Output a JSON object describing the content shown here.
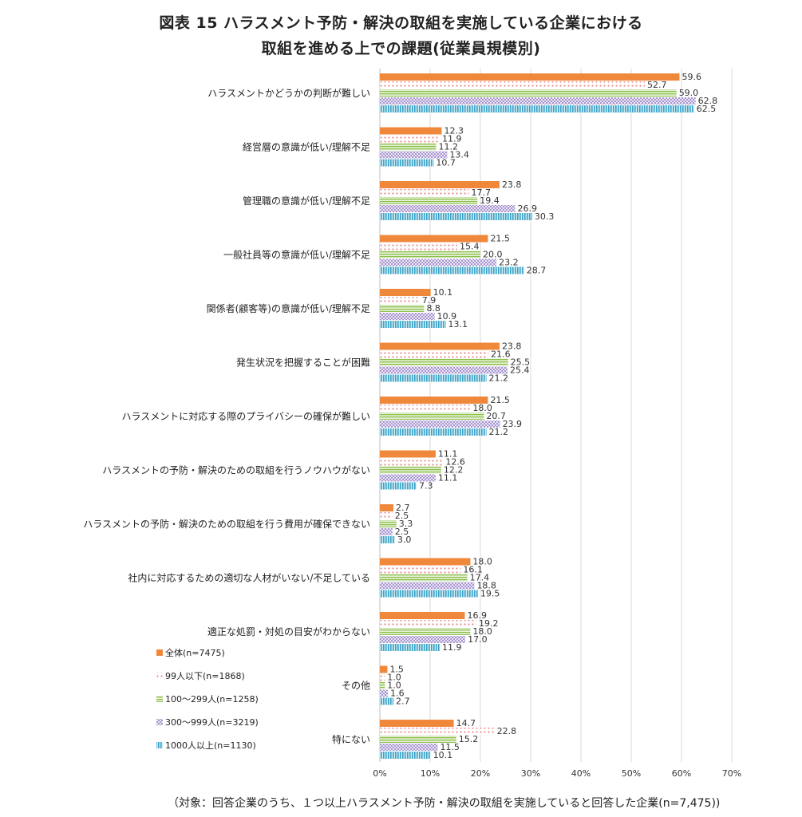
{
  "title_line1": "図表 15 ハラスメント予防・解決の取組を実施している企業における",
  "title_line2": "取組を進める上での課題(従業員規模別)",
  "footnote": "（対象：回答企業のうち、１つ以上ハラスメント予防・解決の取組を実施していると回答した企業(n=7,475))",
  "chart_data": {
    "type": "bar",
    "orientation": "horizontal",
    "xlim": [
      0,
      70
    ],
    "x_ticks": [
      "0%",
      "10%",
      "20%",
      "30%",
      "40%",
      "50%",
      "60%",
      "70%"
    ],
    "grid": true,
    "legend_position": "bottom-left",
    "categories": [
      "ハラスメントかどうかの判断が難しい",
      "経営層の意識が低い/理解不足",
      "管理職の意識が低い/理解不足",
      "一般社員等の意識が低い/理解不足",
      "関係者(顧客等)の意識が低い/理解不足",
      "発生状況を把握することが困難",
      "ハラスメントに対応する際のプライバシーの確保が難しい",
      "ハラスメントの予防・解決のための取組を行うノウハウがない",
      "ハラスメントの予防・解決のための取組を行う費用が確保できない",
      "社内に対応するための適切な人材がいない/不足している",
      "適正な処罰・対処の目安がわからない",
      "その他",
      "特にない"
    ],
    "series": [
      {
        "name": "全体(n=7475)",
        "color": "#f0883c",
        "pattern": "solid",
        "values": [
          59.6,
          12.3,
          23.8,
          21.5,
          10.1,
          23.8,
          21.5,
          11.1,
          2.7,
          18.0,
          16.9,
          1.5,
          14.7
        ]
      },
      {
        "name": "99人以下(n=1868)",
        "color": "#f0a0a0",
        "pattern": "dots",
        "values": [
          52.7,
          11.9,
          17.7,
          15.4,
          7.9,
          21.6,
          18.0,
          12.6,
          2.5,
          16.1,
          19.2,
          1.0,
          22.8
        ]
      },
      {
        "name": "100〜299人(n=1258)",
        "color": "#a8cc6c",
        "pattern": "hlines",
        "values": [
          59.0,
          11.2,
          19.4,
          20.0,
          8.8,
          25.5,
          20.7,
          12.2,
          3.3,
          17.4,
          18.0,
          1.0,
          15.2
        ]
      },
      {
        "name": "300〜999人(n=3219)",
        "color": "#b8a8d8",
        "pattern": "grid",
        "values": [
          62.8,
          13.4,
          26.9,
          23.2,
          10.9,
          25.4,
          23.9,
          11.1,
          2.5,
          18.8,
          17.0,
          1.6,
          11.5
        ]
      },
      {
        "name": "1000人以上(n=1130)",
        "color": "#5ab4d2",
        "pattern": "vlines",
        "values": [
          62.5,
          10.7,
          30.3,
          28.7,
          13.1,
          21.2,
          21.2,
          7.3,
          3.0,
          19.5,
          11.9,
          2.7,
          10.1
        ]
      }
    ]
  }
}
